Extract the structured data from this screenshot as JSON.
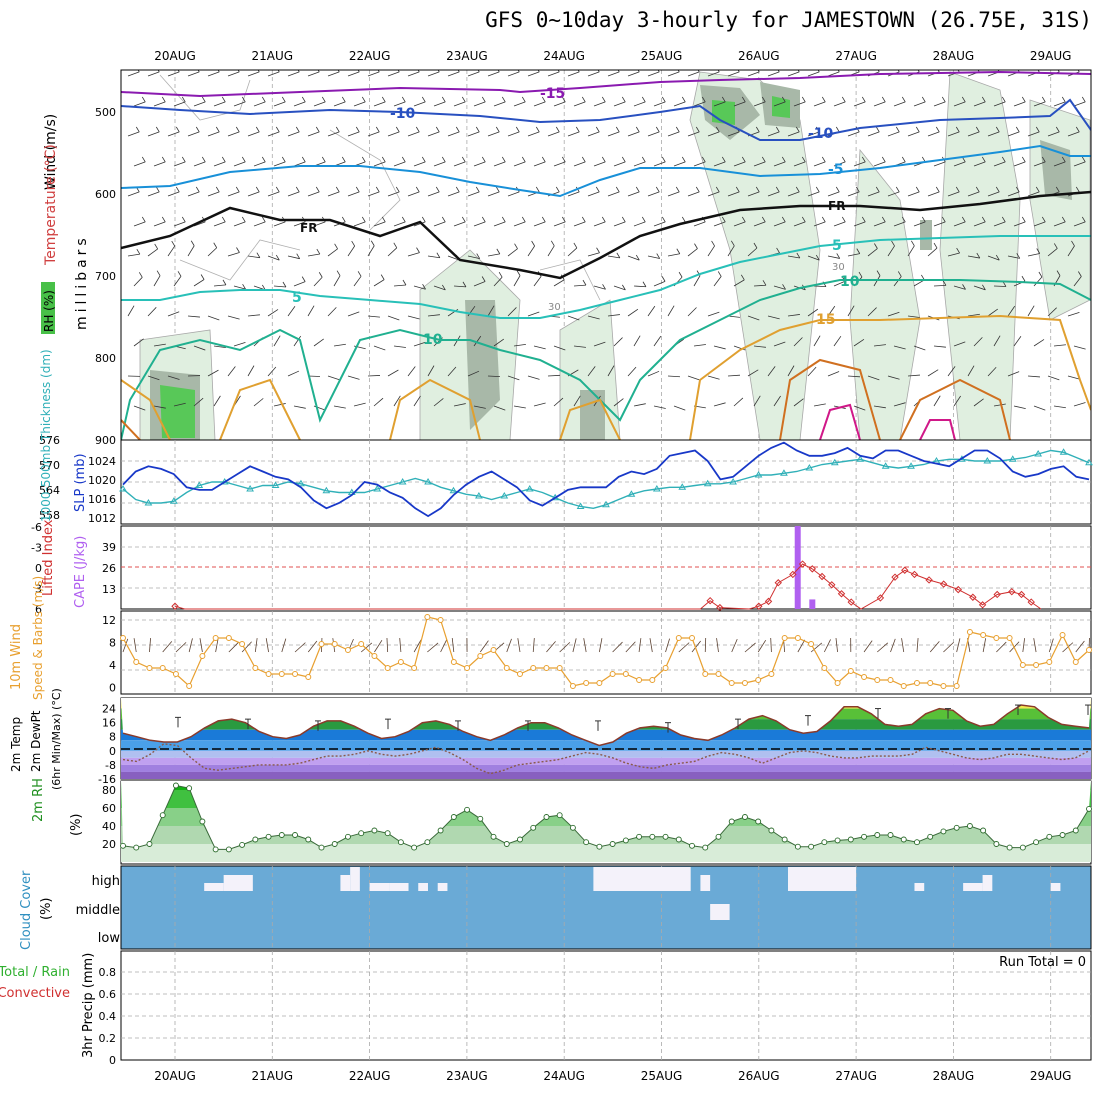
{
  "title": "GFS 0~10day 3-hourly for JAMESTOWN (26.75E, 31S)",
  "colors": {
    "grid": "#aaaaaa",
    "cloud_bg": "#6aaad6",
    "cloud_gap": "#f4f2fa",
    "temp_line": "#8a3a2a",
    "rh_fill": "#38c038",
    "slp": "#1838c8",
    "thickness": "#30b0b8",
    "lifted": "#d03030",
    "cape": "#b060f0",
    "wind": "#e8a030",
    "rh_line": "#209020"
  },
  "chart_data": {
    "type": "meteogram",
    "days": [
      "20AUG",
      "21AUG",
      "22AUG",
      "23AUG",
      "24AUG",
      "25AUG",
      "26AUG",
      "27AUG",
      "28AUG",
      "29AUG"
    ],
    "panels": {
      "upper": {
        "ylabels": [
          "Wind (m/s)",
          "Temperature (°C)",
          "RH (%)",
          "millibars"
        ],
        "yticks": [
          "500",
          "600",
          "700",
          "800",
          "900"
        ],
        "contour_labels": [
          "-15",
          "-10",
          "-10",
          "-5",
          "FR",
          "FR",
          "-5",
          "5",
          "5",
          "10",
          "-10",
          "10",
          "15",
          "10",
          "30",
          "30"
        ]
      },
      "slp_thickness": {
        "ylabels": [
          "1000-500mb Thickness (dm)",
          "SLP (mb)"
        ],
        "thickness_ticks": [
          "576",
          "570",
          "564",
          "558"
        ],
        "slp_ticks": [
          "1024",
          "1020",
          "1016",
          "1012"
        ],
        "slp_range": [
          1012,
          1028
        ],
        "slp": [
          1019.5,
          1022,
          1023,
          1022.5,
          1021.5,
          1019,
          1018.5,
          1018.5,
          1020,
          1021.5,
          1023,
          1022,
          1021,
          1020.5,
          1019,
          1016.5,
          1015,
          1016,
          1017.5,
          1020,
          1019.5,
          1018,
          1017,
          1015,
          1013.5,
          1015,
          1017.5,
          1019.5,
          1021,
          1022,
          1020.5,
          1019,
          1016.5,
          1015.5,
          1017,
          1018.5,
          1019,
          1019,
          1019,
          1021,
          1022,
          1021.5,
          1022.5,
          1025,
          1025.5,
          1026,
          1024,
          1020.5,
          1021,
          1023,
          1025,
          1026.5,
          1027.5,
          1026,
          1025,
          1025,
          1025.5,
          1026.5,
          1025,
          1024.5,
          1026,
          1026,
          1025,
          1024,
          1023.5,
          1023,
          1024.5,
          1026,
          1026,
          1024.5,
          1022,
          1021,
          1021.5,
          1022.5,
          1023,
          1021,
          1020.5
        ],
        "thickness": [
          562,
          559,
          558,
          558,
          558.5,
          561,
          563,
          564,
          564,
          563,
          562,
          563,
          563,
          564,
          563.5,
          562.5,
          561.5,
          561,
          561,
          561,
          562,
          563,
          564,
          565,
          564,
          562.5,
          561.5,
          560.5,
          560,
          559,
          560,
          561,
          562,
          561,
          559.5,
          558,
          557,
          556.5,
          557.5,
          559,
          560.5,
          561.5,
          562,
          562.5,
          562.5,
          563,
          563.5,
          563.5,
          564,
          565,
          566,
          566,
          566.5,
          567,
          568,
          569,
          569.5,
          570,
          570.5,
          569.5,
          568.5,
          568,
          568.5,
          569,
          570,
          570.5,
          570.5,
          570,
          570,
          570,
          570.5,
          571,
          572,
          573,
          572.5,
          571,
          569.5
        ]
      },
      "lifted_cape": {
        "ylabels": [
          "Lifted Index",
          "CAPE (J/kg)"
        ],
        "li_ticks": [
          "-6",
          "-3",
          "0",
          "3",
          "6"
        ],
        "cape_ticks": [
          "39",
          "26",
          "13"
        ],
        "li_range": [
          -6,
          6
        ],
        "cape_range": [
          0,
          52
        ],
        "lifted_index": [
          {
            "t": 0.0,
            "v": 5.6
          },
          {
            "t": 0.1,
            "v": 6.0
          },
          {
            "t": 5.4,
            "v": 6.0
          },
          {
            "t": 5.5,
            "v": 4.8
          },
          {
            "t": 5.6,
            "v": 5.8
          },
          {
            "t": 5.9,
            "v": 6.0
          },
          {
            "t": 6.0,
            "v": 5.6
          },
          {
            "t": 6.1,
            "v": 4.9
          },
          {
            "t": 6.2,
            "v": 2.2
          },
          {
            "t": 6.35,
            "v": 1.0
          },
          {
            "t": 6.45,
            "v": -0.5
          },
          {
            "t": 6.55,
            "v": 0.2
          },
          {
            "t": 6.65,
            "v": 1.3
          },
          {
            "t": 6.75,
            "v": 2.5
          },
          {
            "t": 6.85,
            "v": 3.8
          },
          {
            "t": 6.95,
            "v": 5.0
          },
          {
            "t": 7.05,
            "v": 6.0
          },
          {
            "t": 7.25,
            "v": 4.4
          },
          {
            "t": 7.4,
            "v": 1.4
          },
          {
            "t": 7.5,
            "v": 0.4
          },
          {
            "t": 7.6,
            "v": 1.0
          },
          {
            "t": 7.75,
            "v": 1.8
          },
          {
            "t": 7.9,
            "v": 2.4
          },
          {
            "t": 8.05,
            "v": 3.2
          },
          {
            "t": 8.2,
            "v": 4.3
          },
          {
            "t": 8.3,
            "v": 5.4
          },
          {
            "t": 8.45,
            "v": 3.9
          },
          {
            "t": 8.6,
            "v": 3.5
          },
          {
            "t": 8.7,
            "v": 3.9
          },
          {
            "t": 8.8,
            "v": 5.0
          },
          {
            "t": 8.9,
            "v": 6.0
          }
        ],
        "cape": [
          {
            "t": 6.4,
            "v": 52
          },
          {
            "t": 6.55,
            "v": 6
          }
        ]
      },
      "wind10m": {
        "ylabels": [
          "10m Wind",
          "Speed & Barbs (m/s)"
        ],
        "ticks": [
          "12",
          "8",
          "4",
          "0"
        ],
        "range": [
          0,
          13
        ],
        "speed": [
          9,
          5,
          4,
          4,
          3,
          1,
          6,
          9,
          9,
          8,
          4,
          3,
          3,
          3,
          2.5,
          8,
          8,
          7,
          8,
          6,
          4,
          5,
          4,
          12.5,
          12,
          5,
          4,
          6,
          7,
          4,
          3,
          4,
          4,
          4,
          1,
          1.5,
          1.5,
          3,
          3,
          2,
          2,
          4,
          9,
          9,
          3,
          3,
          1.5,
          1.5,
          2,
          3,
          9,
          9,
          8,
          4,
          1.5,
          3.5,
          2.5,
          2,
          2,
          1,
          1.5,
          1.5,
          1,
          1,
          10,
          9.5,
          9,
          9,
          4.5,
          4.5,
          5,
          9.5,
          5,
          7
        ]
      },
      "temp2m": {
        "ylabels": [
          "2m Temp",
          "2m DewPt",
          "(6hr Min/Max) (°C)"
        ],
        "ticks": [
          "24",
          "16",
          "8",
          "0",
          "-8",
          "-16"
        ],
        "range": [
          -16,
          30
        ],
        "temp": [
          10,
          8,
          6,
          5,
          5,
          8,
          13,
          17,
          18,
          16,
          11,
          8,
          7,
          9,
          14,
          17,
          17,
          14,
          10,
          7,
          8,
          11,
          16,
          17,
          15,
          11,
          8,
          6,
          9,
          13,
          16,
          16,
          13,
          9,
          6,
          3,
          5,
          10,
          13,
          14,
          13,
          9,
          7,
          6,
          9,
          13,
          18,
          20,
          17,
          12,
          10,
          11,
          17,
          25,
          25,
          21,
          15,
          14,
          15,
          21,
          24,
          23,
          17,
          14,
          15,
          21,
          26,
          25,
          19,
          15,
          14,
          13
        ],
        "dewpt": [
          -5,
          -6,
          -2,
          4,
          3,
          -4,
          -10,
          -11,
          -10,
          -9,
          -8,
          -8,
          -8,
          -7,
          -5,
          -3,
          -3,
          -2,
          0,
          -2,
          -3,
          -2,
          0,
          2,
          -1,
          -5,
          -10,
          -13,
          -11,
          -8,
          -7,
          -6,
          -5,
          -3,
          -1,
          -2,
          -4,
          -7,
          -9,
          -10,
          -8,
          -7,
          -6,
          -3,
          -1,
          -2,
          -4,
          -7,
          -4,
          -1,
          0,
          -1,
          -3,
          -4,
          -4,
          -3,
          -3,
          -3,
          -2,
          2,
          0,
          -2,
          -4,
          -5,
          -4,
          -2,
          -2,
          -3,
          -4,
          -5,
          -4,
          0
        ],
        "tmax": [
          19,
          18,
          17,
          18,
          17,
          17,
          17,
          16,
          18,
          20,
          24,
          24,
          26,
          26
        ]
      },
      "rh2m": {
        "ylabels": [
          "2m RH",
          "(%)"
        ],
        "ticks": [
          "80",
          "60",
          "40",
          "20"
        ],
        "range": [
          0,
          100
        ],
        "values": [
          18,
          16,
          20,
          52,
          85,
          82,
          45,
          14,
          14,
          19,
          25,
          28,
          30,
          30,
          25,
          16,
          20,
          28,
          32,
          35,
          32,
          22,
          16,
          22,
          35,
          50,
          58,
          48,
          28,
          20,
          25,
          38,
          50,
          52,
          38,
          22,
          17,
          20,
          24,
          28,
          28,
          28,
          25,
          18,
          16,
          28,
          45,
          50,
          45,
          35,
          25,
          17,
          17,
          22,
          24,
          25,
          28,
          30,
          30,
          25,
          22,
          28,
          34,
          38,
          40,
          35,
          20,
          16,
          16,
          22,
          28,
          30,
          35,
          59
        ]
      },
      "cloud": {
        "ylabels": [
          "Cloud Cover",
          "(%)"
        ],
        "ticks": [
          "high",
          "middle",
          "low"
        ],
        "blocks": [
          {
            "level": "high",
            "t0": 0.3,
            "t1": 0.5,
            "lvl": 1
          },
          {
            "level": "high",
            "t0": 0.5,
            "t1": 0.8,
            "lvl": 2
          },
          {
            "level": "high",
            "t0": 2.0,
            "t1": 2.2,
            "lvl": 1
          },
          {
            "level": "high",
            "t0": 1.7,
            "t1": 1.8,
            "lvl": 2
          },
          {
            "level": "high",
            "t0": 1.8,
            "t1": 1.9,
            "lvl": 3
          },
          {
            "level": "high",
            "t0": 2.2,
            "t1": 2.4,
            "lvl": 1
          },
          {
            "level": "high",
            "t0": 2.5,
            "t1": 2.6,
            "lvl": 1
          },
          {
            "level": "high",
            "t0": 2.7,
            "t1": 2.8,
            "lvl": 1
          },
          {
            "level": "high",
            "t0": 4.3,
            "t1": 5.0,
            "lvl": 3
          },
          {
            "level": "high",
            "t0": 5.0,
            "t1": 5.3,
            "lvl": 3
          },
          {
            "level": "high",
            "t0": 5.4,
            "t1": 5.5,
            "lvl": 2
          },
          {
            "level": "high",
            "t0": 6.3,
            "t1": 7.0,
            "lvl": 3
          },
          {
            "level": "high",
            "t0": 7.6,
            "t1": 7.7,
            "lvl": 1
          },
          {
            "level": "high",
            "t0": 8.1,
            "t1": 8.3,
            "lvl": 1
          },
          {
            "level": "high",
            "t0": 8.3,
            "t1": 8.4,
            "lvl": 2
          },
          {
            "level": "high",
            "t0": 9.0,
            "t1": 9.1,
            "lvl": 1
          },
          {
            "level": "middle",
            "t0": 5.5,
            "t1": 5.7,
            "lvl": 2
          }
        ]
      },
      "precip": {
        "ylabels": [
          "Total / Rain",
          "Convective",
          "3hr Precip (mm)"
        ],
        "ticks": [
          "0.8",
          "0.6",
          "0.4",
          "0.2",
          "0"
        ],
        "run_total": "Run Total = 0"
      }
    }
  }
}
